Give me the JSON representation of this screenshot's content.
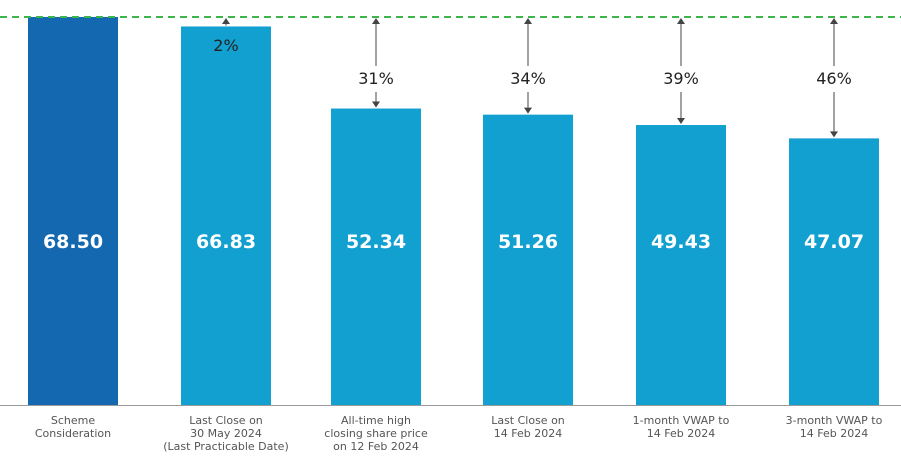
{
  "chart_data": {
    "type": "bar",
    "categories": [
      [
        "Scheme",
        "Consideration"
      ],
      [
        "Last Close on",
        "30 May 2024",
        "(Last Practicable Date)"
      ],
      [
        "All-time high",
        "closing share price",
        "on 12 Feb 2024"
      ],
      [
        "Last Close on",
        "14 Feb 2024"
      ],
      [
        "1-month VWAP to",
        "14 Feb 2024"
      ],
      [
        "3-month VWAP to",
        "14 Feb 2024"
      ]
    ],
    "values": [
      68.5,
      66.83,
      52.34,
      51.26,
      49.43,
      47.07
    ],
    "value_labels": [
      "68.50",
      "66.83",
      "52.34",
      "51.26",
      "49.43",
      "47.07"
    ],
    "premiums": [
      "",
      "2%",
      "31%",
      "34%",
      "39%",
      "46%"
    ],
    "reference_line_value": 68.5,
    "ylim": [
      0,
      68.5
    ],
    "grid": false,
    "legend": "none",
    "colors": {
      "highlight_bar": "#1468B0",
      "bar": "#11A0D0",
      "reference_line": "#3CB54A",
      "arrow": "#444444",
      "axis": "#999999"
    }
  }
}
